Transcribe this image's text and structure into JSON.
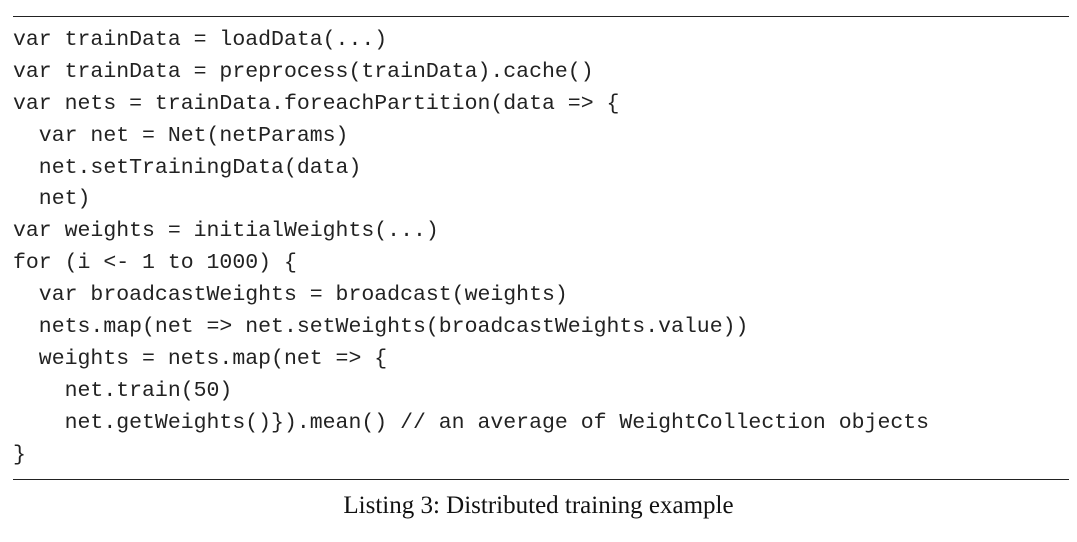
{
  "listing": {
    "lines": [
      "var trainData = loadData(...)",
      "var trainData = preprocess(trainData).cache()",
      "var nets = trainData.foreachPartition(data => {",
      "  var net = Net(netParams)",
      "  net.setTrainingData(data)",
      "  net)",
      "var weights = initialWeights(...)",
      "for (i <- 1 to 1000) {",
      "  var broadcastWeights = broadcast(weights)",
      "  nets.map(net => net.setWeights(broadcastWeights.value))",
      "  weights = nets.map(net => {",
      "    net.train(50)",
      "    net.getWeights()}).mean() // an average of WeightCollection objects",
      "}"
    ],
    "caption": "Listing 3: Distributed training example"
  }
}
